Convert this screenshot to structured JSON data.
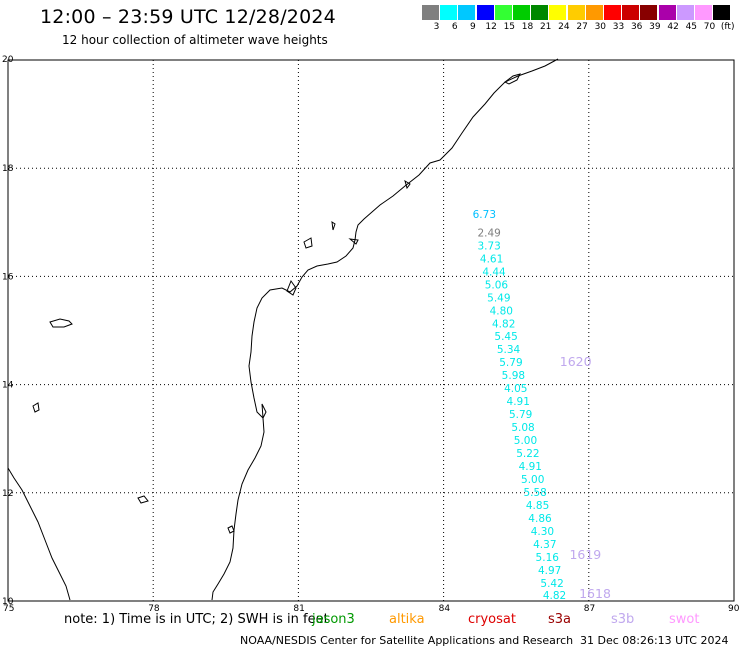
{
  "header": {
    "title": "12:00 – 23:59 UTC 12/28/2024",
    "subtitle": "12 hour collection of altimeter wave heights"
  },
  "colorbar": {
    "bins": [
      {
        "label": "3",
        "color": "#7f7f7f"
      },
      {
        "label": "6",
        "color": "#00ffff"
      },
      {
        "label": "9",
        "color": "#00c8ff"
      },
      {
        "label": "12",
        "color": "#0000ff"
      },
      {
        "label": "15",
        "color": "#33ff33"
      },
      {
        "label": "18",
        "color": "#00cc00"
      },
      {
        "label": "21",
        "color": "#008800"
      },
      {
        "label": "24",
        "color": "#ffff00"
      },
      {
        "label": "27",
        "color": "#ffcc00"
      },
      {
        "label": "30",
        "color": "#ff9900"
      },
      {
        "label": "33",
        "color": "#ff0000"
      },
      {
        "label": "36",
        "color": "#cc0000"
      },
      {
        "label": "39",
        "color": "#880000"
      },
      {
        "label": "42",
        "color": "#aa00aa"
      },
      {
        "label": "45",
        "color": "#cc99ff"
      },
      {
        "label": "70",
        "color": "#ff99ff"
      },
      {
        "label": "(ft)",
        "color": "#000000"
      }
    ]
  },
  "axes": {
    "x_ticks": [
      "75",
      "78",
      "81",
      "84",
      "87",
      "90"
    ],
    "y_ticks": [
      "20",
      "18",
      "16",
      "14",
      "12",
      "10"
    ],
    "lon_range": [
      75,
      90
    ],
    "lat_range": [
      10,
      20
    ],
    "grid": "dotted"
  },
  "wave_heights": [
    {
      "value": "6.73",
      "lon": 84.6,
      "lat": 17.08,
      "color": "#00bfff"
    },
    {
      "value": "2.49",
      "lon": 84.7,
      "lat": 16.74,
      "color": "#7f7f7f"
    },
    {
      "value": "3.73",
      "lon": 84.7,
      "lat": 16.5,
      "color": "#00e8e8"
    },
    {
      "value": "4.61",
      "lon": 84.75,
      "lat": 16.26,
      "color": "#00e8e8"
    },
    {
      "value": "4.44",
      "lon": 84.8,
      "lat": 16.02,
      "color": "#00e8e8"
    },
    {
      "value": "5.06",
      "lon": 84.85,
      "lat": 15.78,
      "color": "#00e8e8"
    },
    {
      "value": "5.49",
      "lon": 84.9,
      "lat": 15.54,
      "color": "#00e8e8"
    },
    {
      "value": "4.80",
      "lon": 84.95,
      "lat": 15.3,
      "color": "#00e8e8"
    },
    {
      "value": "4.82",
      "lon": 85.0,
      "lat": 15.06,
      "color": "#00e8e8"
    },
    {
      "value": "5.45",
      "lon": 85.05,
      "lat": 14.82,
      "color": "#00e8e8"
    },
    {
      "value": "5.34",
      "lon": 85.1,
      "lat": 14.58,
      "color": "#00e8e8"
    },
    {
      "value": "5.79",
      "lon": 85.15,
      "lat": 14.34,
      "color": "#00e8e8"
    },
    {
      "value": "5.98",
      "lon": 85.2,
      "lat": 14.1,
      "color": "#00e8e8"
    },
    {
      "value": "4.05",
      "lon": 85.25,
      "lat": 13.86,
      "color": "#00e8e8"
    },
    {
      "value": "4.91",
      "lon": 85.3,
      "lat": 13.62,
      "color": "#00e8e8"
    },
    {
      "value": "5.79",
      "lon": 85.35,
      "lat": 13.38,
      "color": "#00e8e8"
    },
    {
      "value": "5.08",
      "lon": 85.4,
      "lat": 13.14,
      "color": "#00e8e8"
    },
    {
      "value": "5.00",
      "lon": 85.45,
      "lat": 12.9,
      "color": "#00e8e8"
    },
    {
      "value": "5.22",
      "lon": 85.5,
      "lat": 12.66,
      "color": "#00e8e8"
    },
    {
      "value": "4.91",
      "lon": 85.55,
      "lat": 12.42,
      "color": "#00e8e8"
    },
    {
      "value": "5.00",
      "lon": 85.6,
      "lat": 12.18,
      "color": "#00e8e8"
    },
    {
      "value": "5.58",
      "lon": 85.65,
      "lat": 11.94,
      "color": "#00e8e8"
    },
    {
      "value": "4.85",
      "lon": 85.7,
      "lat": 11.7,
      "color": "#00e8e8"
    },
    {
      "value": "4.86",
      "lon": 85.75,
      "lat": 11.46,
      "color": "#00e8e8"
    },
    {
      "value": "4.30",
      "lon": 85.8,
      "lat": 11.22,
      "color": "#00e8e8"
    },
    {
      "value": "4.37",
      "lon": 85.85,
      "lat": 10.98,
      "color": "#00e8e8"
    },
    {
      "value": "5.16",
      "lon": 85.9,
      "lat": 10.74,
      "color": "#00e8e8"
    },
    {
      "value": "4.97",
      "lon": 85.95,
      "lat": 10.5,
      "color": "#00e8e8"
    },
    {
      "value": "5.42",
      "lon": 86.0,
      "lat": 10.26,
      "color": "#00e8e8"
    },
    {
      "value": "4.82",
      "lon": 86.05,
      "lat": 10.04,
      "color": "#00e8e8"
    }
  ],
  "pass_labels": [
    {
      "text": "1620",
      "lon": 86.4,
      "lat": 14.34,
      "color": "#c0a8ee"
    },
    {
      "text": "1619",
      "lon": 86.6,
      "lat": 10.78,
      "color": "#c0a8ee"
    },
    {
      "text": "1618",
      "lon": 86.8,
      "lat": 10.06,
      "color": "#c0a8ee"
    }
  ],
  "footer": {
    "note": "note:  1) Time is in UTC; 2) SWH is in feet",
    "satellites": [
      {
        "name": "jason3",
        "color": "#009900"
      },
      {
        "name": "altika",
        "color": "#ff9900"
      },
      {
        "name": "cryosat",
        "color": "#dd0000"
      },
      {
        "name": "s3a",
        "color": "#990000"
      },
      {
        "name": "s3b",
        "color": "#c0a8ee"
      },
      {
        "name": "swot",
        "color": "#ff99ff"
      }
    ],
    "credit": "NOAA/NESDIS Center for Satellite Applications and Research",
    "timestamp": "31 Dec 08:26:13 UTC 2024"
  }
}
